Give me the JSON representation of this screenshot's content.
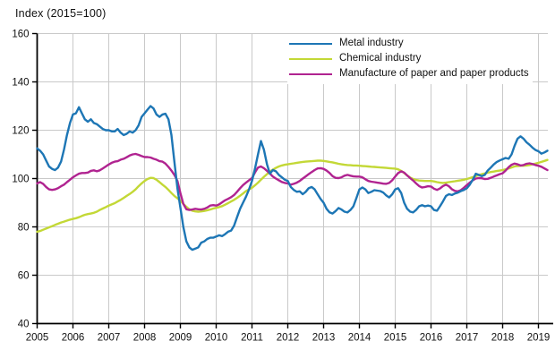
{
  "chart_data": {
    "type": "line",
    "title": "Index (2015=100)",
    "x_start_year": 2005,
    "points_per_year": 12,
    "x_tick_labels": [
      "2005",
      "2006",
      "2007",
      "2008",
      "2009",
      "2010",
      "2011",
      "2012",
      "2013",
      "2014",
      "2015",
      "2016",
      "2017",
      "2018",
      "2019"
    ],
    "y_ticks": [
      40,
      60,
      80,
      100,
      120,
      140,
      160
    ],
    "ylim": [
      40,
      160
    ],
    "grid": true,
    "legend_position": "inside-top",
    "colors": {
      "axis": "#000000",
      "grid": "#c9c9c9",
      "text": "#111111"
    },
    "series": [
      {
        "name": "Metal industry",
        "color": "#1d76b5",
        "values": [
          112.5,
          111.5,
          110.0,
          107.5,
          105.0,
          104.0,
          103.5,
          104.5,
          107.0,
          112.0,
          118.0,
          123.0,
          126.5,
          127.0,
          129.5,
          127.0,
          124.5,
          123.5,
          124.5,
          123.0,
          122.5,
          121.5,
          120.5,
          120.0,
          120.0,
          119.5,
          119.5,
          120.5,
          119.0,
          118.0,
          118.5,
          119.5,
          119.0,
          120.0,
          122.0,
          125.5,
          127.0,
          128.5,
          130.0,
          129.0,
          126.5,
          125.5,
          126.5,
          126.8,
          124.5,
          118.0,
          107.0,
          96.0,
          88.0,
          80.0,
          74.0,
          71.5,
          70.5,
          71.0,
          71.5,
          73.5,
          74.0,
          75.0,
          75.5,
          75.5,
          76.0,
          76.5,
          76.2,
          77.0,
          78.0,
          78.5,
          80.5,
          84.0,
          87.5,
          90.0,
          92.5,
          95.5,
          99.0,
          104.0,
          110.0,
          115.5,
          112.0,
          106.0,
          102.0,
          103.5,
          103.0,
          101.5,
          100.5,
          99.5,
          99.0,
          96.5,
          95.3,
          94.5,
          94.7,
          93.5,
          94.5,
          96.0,
          96.5,
          95.5,
          93.5,
          91.5,
          90.0,
          87.5,
          86.0,
          85.5,
          86.5,
          87.8,
          87.2,
          86.3,
          86.0,
          87.0,
          88.5,
          92.0,
          95.5,
          96.3,
          95.5,
          94.0,
          94.5,
          95.2,
          95.0,
          94.8,
          94.2,
          93.0,
          92.2,
          93.5,
          95.5,
          96.0,
          94.0,
          90.0,
          87.5,
          86.3,
          86.0,
          87.0,
          88.5,
          89.0,
          88.5,
          88.8,
          88.5,
          87.0,
          86.7,
          88.5,
          90.5,
          92.8,
          93.5,
          93.2,
          93.8,
          94.2,
          94.8,
          95.3,
          96.0,
          97.5,
          99.5,
          102.0,
          101.5,
          101.0,
          101.5,
          103.3,
          104.5,
          105.8,
          106.8,
          107.5,
          108.0,
          108.5,
          108.2,
          110.0,
          113.5,
          116.5,
          117.5,
          116.5,
          115.0,
          114.0,
          112.8,
          111.8,
          111.3,
          110.3,
          110.8,
          111.5
        ]
      },
      {
        "name": "Chemical industry",
        "color": "#c3d836",
        "values": [
          78.0,
          78.3,
          78.8,
          79.3,
          79.8,
          80.3,
          80.8,
          81.3,
          81.8,
          82.2,
          82.6,
          83.0,
          83.3,
          83.6,
          84.0,
          84.5,
          85.0,
          85.3,
          85.5,
          85.8,
          86.3,
          87.0,
          87.6,
          88.2,
          88.8,
          89.3,
          89.8,
          90.5,
          91.2,
          92.0,
          92.8,
          93.6,
          94.5,
          95.5,
          96.8,
          98.0,
          99.0,
          99.8,
          100.3,
          100.2,
          99.5,
          98.5,
          97.5,
          96.5,
          95.3,
          94.0,
          92.8,
          91.8,
          90.8,
          89.5,
          88.3,
          87.3,
          86.7,
          86.4,
          86.3,
          86.4,
          86.6,
          86.9,
          87.2,
          87.6,
          87.9,
          88.2,
          88.6,
          89.2,
          89.8,
          90.5,
          91.2,
          92.0,
          92.9,
          93.8,
          94.8,
          95.5,
          96.2,
          97.2,
          98.3,
          99.5,
          100.7,
          101.8,
          102.8,
          103.7,
          104.4,
          105.0,
          105.4,
          105.7,
          105.9,
          106.1,
          106.3,
          106.5,
          106.7,
          106.9,
          107.0,
          107.1,
          107.2,
          107.3,
          107.4,
          107.4,
          107.3,
          107.1,
          106.9,
          106.7,
          106.4,
          106.1,
          105.9,
          105.7,
          105.6,
          105.5,
          105.4,
          105.4,
          105.3,
          105.2,
          105.1,
          105.0,
          104.9,
          104.8,
          104.7,
          104.6,
          104.5,
          104.4,
          104.3,
          104.2,
          104.1,
          103.8,
          103.2,
          102.3,
          101.3,
          100.4,
          99.8,
          99.4,
          99.2,
          99.1,
          99.0,
          99.0,
          99.0,
          98.8,
          98.5,
          98.3,
          98.2,
          98.3,
          98.5,
          98.7,
          98.9,
          99.1,
          99.3,
          99.5,
          99.8,
          100.2,
          100.6,
          101.0,
          101.4,
          101.8,
          102.1,
          102.4,
          102.7,
          102.9,
          103.1,
          103.3,
          103.5,
          103.8,
          104.2,
          104.6,
          105.0,
          105.2,
          105.3,
          105.3,
          105.4,
          105.6,
          105.9,
          106.2,
          106.5,
          106.9,
          107.3,
          107.7
        ]
      },
      {
        "name": "Manufacture of paper and paper products",
        "color": "#b02390",
        "values": [
          98.0,
          98.5,
          97.8,
          96.5,
          95.5,
          95.3,
          95.5,
          96.0,
          96.8,
          97.5,
          98.5,
          99.5,
          100.5,
          101.3,
          102.0,
          102.3,
          102.3,
          102.5,
          103.2,
          103.4,
          103.0,
          103.4,
          104.2,
          105.0,
          105.8,
          106.5,
          107.0,
          107.2,
          107.8,
          108.2,
          108.8,
          109.5,
          110.0,
          110.2,
          109.8,
          109.3,
          108.9,
          108.9,
          108.7,
          108.2,
          107.8,
          107.2,
          107.0,
          106.2,
          104.8,
          103.3,
          101.5,
          99.0,
          94.0,
          89.5,
          87.3,
          87.0,
          87.2,
          87.5,
          87.3,
          87.2,
          87.5,
          88.0,
          88.8,
          89.0,
          88.8,
          89.3,
          90.2,
          91.0,
          91.6,
          92.3,
          93.2,
          94.5,
          96.0,
          97.3,
          98.3,
          99.3,
          100.2,
          102.5,
          104.5,
          105.0,
          104.3,
          103.2,
          102.1,
          100.8,
          100.0,
          99.3,
          98.6,
          98.2,
          98.0,
          97.5,
          97.8,
          98.3,
          99.0,
          100.0,
          100.9,
          101.8,
          102.7,
          103.5,
          104.2,
          104.3,
          104.0,
          103.3,
          102.3,
          101.0,
          100.3,
          100.2,
          100.5,
          101.2,
          101.5,
          101.2,
          100.9,
          100.8,
          100.8,
          100.5,
          99.7,
          99.0,
          98.7,
          98.5,
          98.3,
          98.1,
          97.9,
          97.8,
          98.2,
          99.3,
          100.8,
          102.3,
          103.0,
          102.5,
          101.3,
          100.2,
          99.2,
          98.0,
          96.9,
          96.3,
          96.5,
          96.8,
          96.7,
          95.8,
          95.3,
          95.9,
          96.9,
          97.5,
          96.8,
          95.6,
          94.9,
          94.7,
          95.2,
          96.2,
          97.3,
          98.3,
          99.3,
          100.0,
          100.2,
          100.1,
          99.8,
          99.9,
          100.3,
          100.8,
          101.3,
          101.8,
          102.2,
          103.3,
          104.7,
          105.7,
          106.2,
          105.9,
          105.4,
          105.6,
          106.1,
          106.3,
          106.0,
          105.6,
          105.3,
          104.9,
          104.2,
          103.5
        ]
      }
    ]
  }
}
